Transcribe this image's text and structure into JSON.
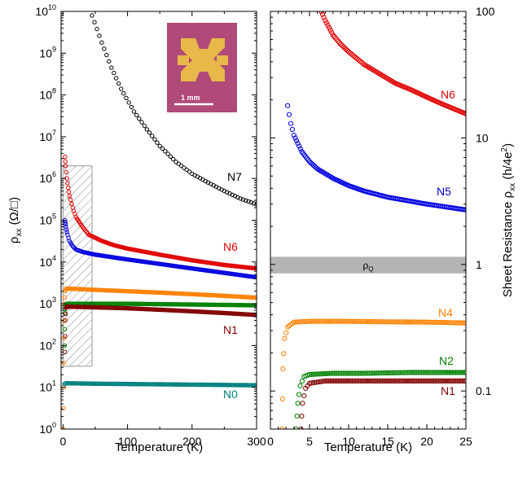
{
  "chart_data": [
    {
      "type": "scatter",
      "panel": "left",
      "xlabel": "Temperature (K)",
      "ylabel": "ρxx (Ω/□)",
      "ylabel_main": "ρ",
      "ylabel_sub": "xx",
      "ylabel_unit": " (Ω/□)",
      "xlim": [
        -3,
        300
      ],
      "ylim": [
        1,
        10000000000
      ],
      "yscale": "log",
      "xticks": [
        "0",
        "100",
        "200",
        "300"
      ],
      "yticks": [
        {
          "base": "10",
          "exp": "0"
        },
        {
          "base": "10",
          "exp": "1"
        },
        {
          "base": "10",
          "exp": "2"
        },
        {
          "base": "10",
          "exp": "3"
        },
        {
          "base": "10",
          "exp": "4"
        },
        {
          "base": "10",
          "exp": "5"
        },
        {
          "base": "10",
          "exp": "6"
        },
        {
          "base": "10",
          "exp": "7"
        },
        {
          "base": "10",
          "exp": "8"
        },
        {
          "base": "10",
          "exp": "9"
        },
        {
          "base": "10",
          "exp": "10"
        }
      ],
      "inset_scale_label": "1 mm",
      "shaded_region": {
        "x": [
          0,
          45
        ],
        "y": [
          32,
          2000000
        ]
      },
      "series": [
        {
          "name": "N7",
          "color": "#000000",
          "points": [
            [
              45,
              8000000000
            ],
            [
              60,
              1800000000
            ],
            [
              75,
              450000000
            ],
            [
              90,
              140000000
            ],
            [
              110,
              40000000
            ],
            [
              130,
              15000000
            ],
            [
              150,
              6000000
            ],
            [
              175,
              2500000
            ],
            [
              200,
              1300000
            ],
            [
              225,
              800000
            ],
            [
              250,
              500000
            ],
            [
              275,
              330000
            ],
            [
              300,
              240000
            ]
          ]
        },
        {
          "name": "N6",
          "color": "#e00000",
          "points": [
            [
              3,
              3300000
            ],
            [
              4,
              2000000
            ],
            [
              6,
              1000000
            ],
            [
              8,
              600000
            ],
            [
              10,
              380000
            ],
            [
              15,
              200000
            ],
            [
              20,
              120000
            ],
            [
              30,
              70000
            ],
            [
              40,
              45000
            ],
            [
              60,
              32000
            ],
            [
              80,
              25000
            ],
            [
              100,
              21000
            ],
            [
              150,
              15000
            ],
            [
              200,
              11000
            ],
            [
              250,
              8500
            ],
            [
              300,
              7000
            ]
          ]
        },
        {
          "name": "N5",
          "color": "#0000e0",
          "points": [
            [
              3,
              100000
            ],
            [
              4,
              80000
            ],
            [
              5,
              60000
            ],
            [
              7,
              45000
            ],
            [
              10,
              32000
            ],
            [
              15,
              24000
            ],
            [
              20,
              20000
            ],
            [
              30,
              17500
            ],
            [
              50,
              15000
            ],
            [
              100,
              11500
            ],
            [
              150,
              9000
            ],
            [
              200,
              7000
            ],
            [
              250,
              5500
            ],
            [
              300,
              4300
            ]
          ]
        },
        {
          "name": "N4",
          "color": "#ff8000",
          "points": [
            [
              0.5,
              1
            ],
            [
              1,
              10
            ],
            [
              1.5,
              150
            ],
            [
              2,
              1000
            ],
            [
              3,
              2000
            ],
            [
              5,
              2300
            ],
            [
              10,
              2300
            ],
            [
              50,
              2150
            ],
            [
              100,
              2000
            ],
            [
              150,
              1850
            ],
            [
              200,
              1700
            ],
            [
              250,
              1550
            ],
            [
              300,
              1400
            ]
          ]
        },
        {
          "name": "N2",
          "color": "#008000",
          "points": [
            [
              2.5,
              100
            ],
            [
              3,
              600
            ],
            [
              4,
              950
            ],
            [
              6,
              1000
            ],
            [
              10,
              1000
            ],
            [
              50,
              1000
            ],
            [
              100,
              1000
            ],
            [
              150,
              980
            ],
            [
              200,
              960
            ],
            [
              250,
              940
            ],
            [
              300,
              920
            ]
          ]
        },
        {
          "name": "N1",
          "color": "#800000",
          "points": [
            [
              3,
              70
            ],
            [
              3.5,
              400
            ],
            [
              4.5,
              800
            ],
            [
              6,
              850
            ],
            [
              10,
              850
            ],
            [
              50,
              820
            ],
            [
              100,
              780
            ],
            [
              150,
              720
            ],
            [
              200,
              660
            ],
            [
              250,
              600
            ],
            [
              300,
              540
            ]
          ]
        },
        {
          "name": "N0",
          "color": "#008080",
          "points": [
            [
              2,
              12
            ],
            [
              5,
              12.5
            ],
            [
              10,
              12.5
            ],
            [
              50,
              12.2
            ],
            [
              100,
              12
            ],
            [
              150,
              11.8
            ],
            [
              200,
              11.6
            ],
            [
              250,
              11.4
            ],
            [
              300,
              11.2
            ]
          ]
        }
      ],
      "labels": [
        {
          "text": "N7",
          "color": "#000000"
        },
        {
          "text": "N6",
          "color": "#e00000"
        },
        {
          "text": "N1",
          "color": "#800000"
        },
        {
          "text": "N0",
          "color": "#008080"
        }
      ]
    },
    {
      "type": "scatter",
      "panel": "right",
      "xlabel": "Temperature (K)",
      "ylabel": "Sheet Resistance ρxx (h/4e²)",
      "ylabel_main": "Sheet Resistance ρ",
      "ylabel_sub": "xx",
      "ylabel_unit": " (h/4e",
      "ylabel_sup": "2",
      "ylabel_close": ")",
      "xlim": [
        0,
        25
      ],
      "ylim": [
        0.05,
        100
      ],
      "yscale": "log",
      "xticks": [
        "0",
        "5",
        "10",
        "15",
        "20",
        "25"
      ],
      "yticks": [
        "0.1",
        "1",
        "10",
        "100"
      ],
      "band": {
        "label": "ρQ",
        "label_main": "ρ",
        "label_sub": "Q",
        "y": [
          0.85,
          1.15
        ],
        "color": "#b4b4b4"
      },
      "series": [
        {
          "name": "N6",
          "color": "#e00000",
          "points": [
            [
              6.5,
              100
            ],
            [
              7,
              85
            ],
            [
              8,
              65
            ],
            [
              9,
              55
            ],
            [
              10,
              48
            ],
            [
              12,
              38
            ],
            [
              14,
              32
            ],
            [
              16,
              27
            ],
            [
              18,
              24
            ],
            [
              20,
              21
            ],
            [
              22,
              18.5
            ],
            [
              25,
              15.5
            ]
          ]
        },
        {
          "name": "N5",
          "color": "#0000e0",
          "points": [
            [
              2.2,
              18
            ],
            [
              2.6,
              13
            ],
            [
              3,
              10.5
            ],
            [
              4,
              7.8
            ],
            [
              5,
              6.5
            ],
            [
              6,
              5.7
            ],
            [
              8,
              4.8
            ],
            [
              10,
              4.2
            ],
            [
              12,
              3.8
            ],
            [
              15,
              3.4
            ],
            [
              20,
              3.0
            ],
            [
              25,
              2.7
            ]
          ]
        },
        {
          "name": "N4",
          "color": "#ff8000",
          "points": [
            [
              1.5,
              0.05
            ],
            [
              1.6,
              0.15
            ],
            [
              1.8,
              0.26
            ],
            [
              2.2,
              0.32
            ],
            [
              3,
              0.35
            ],
            [
              5,
              0.355
            ],
            [
              10,
              0.355
            ],
            [
              15,
              0.352
            ],
            [
              20,
              0.35
            ],
            [
              25,
              0.345
            ]
          ]
        },
        {
          "name": "N2",
          "color": "#008000",
          "points": [
            [
              3.3,
              0.05
            ],
            [
              3.5,
              0.08
            ],
            [
              3.8,
              0.11
            ],
            [
              4.3,
              0.13
            ],
            [
              5,
              0.135
            ],
            [
              8,
              0.138
            ],
            [
              12,
              0.138
            ],
            [
              18,
              0.14
            ],
            [
              22,
              0.14
            ],
            [
              25,
              0.14
            ]
          ]
        },
        {
          "name": "N1",
          "color": "#800000",
          "points": [
            [
              3.9,
              0.05
            ],
            [
              4.1,
              0.08
            ],
            [
              4.5,
              0.105
            ],
            [
              5,
              0.115
            ],
            [
              7,
              0.12
            ],
            [
              10,
              0.12
            ],
            [
              15,
              0.12
            ],
            [
              20,
              0.12
            ],
            [
              25,
              0.12
            ]
          ]
        }
      ],
      "labels": [
        {
          "text": "N6",
          "color": "#e00000"
        },
        {
          "text": "N5",
          "color": "#0000e0"
        },
        {
          "text": "N4",
          "color": "#ff8000"
        },
        {
          "text": "N2",
          "color": "#008000"
        },
        {
          "text": "N1",
          "color": "#800000"
        }
      ]
    }
  ]
}
